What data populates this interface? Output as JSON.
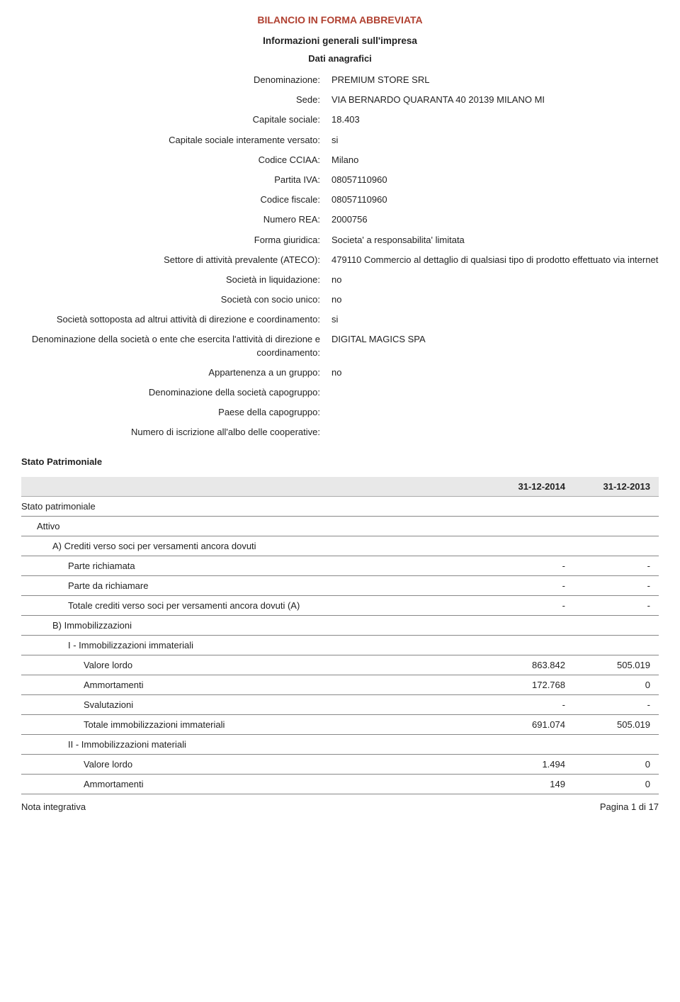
{
  "doc_title": "BILANCIO IN FORMA ABBREVIATA",
  "section_heading": "Informazioni generali sull'impresa",
  "sub_heading": "Dati anagrafici",
  "info_rows": [
    {
      "label": "Denominazione:",
      "value": "PREMIUM STORE SRL"
    },
    {
      "label": "Sede:",
      "value": "VIA BERNARDO QUARANTA 40 20139 MILANO MI"
    },
    {
      "label": "Capitale sociale:",
      "value": "18.403"
    },
    {
      "label": "Capitale sociale interamente versato:",
      "value": "si"
    },
    {
      "label": "Codice CCIAA:",
      "value": "Milano"
    },
    {
      "label": "Partita IVA:",
      "value": "08057110960"
    },
    {
      "label": "Codice fiscale:",
      "value": "08057110960"
    },
    {
      "label": "Numero REA:",
      "value": "2000756"
    },
    {
      "label": "Forma giuridica:",
      "value": "Societa' a responsabilita' limitata"
    },
    {
      "label": "Settore di attività prevalente (ATECO):",
      "value": "479110 Commercio al dettaglio di qualsiasi tipo di prodotto effettuato via internet"
    },
    {
      "label": "Società in liquidazione:",
      "value": "no"
    },
    {
      "label": "Società con socio unico:",
      "value": "no"
    },
    {
      "label": "Società sottoposta ad altrui attività di direzione e coordinamento:",
      "value": "si"
    },
    {
      "label": "Denominazione della società o ente che esercita l'attività di direzione e coordinamento:",
      "value": "DIGITAL MAGICS SPA"
    },
    {
      "label": "Appartenenza a un gruppo:",
      "value": "no"
    },
    {
      "label": "Denominazione della società capogruppo:",
      "value": ""
    },
    {
      "label": "Paese della capogruppo:",
      "value": ""
    },
    {
      "label": "Numero di iscrizione all'albo delle cooperative:",
      "value": ""
    }
  ],
  "section_title": "Stato Patrimoniale",
  "table_header": {
    "col1": "31-12-2014",
    "col2": "31-12-2013"
  },
  "table_rows": [
    {
      "label": "Stato patrimoniale",
      "v1": "",
      "v2": "",
      "indent": 0
    },
    {
      "label": "Attivo",
      "v1": "",
      "v2": "",
      "indent": 1
    },
    {
      "label": "A) Crediti verso soci per versamenti ancora dovuti",
      "v1": "",
      "v2": "",
      "indent": 2
    },
    {
      "label": "Parte richiamata",
      "v1": "-",
      "v2": "-",
      "indent": 3
    },
    {
      "label": "Parte da richiamare",
      "v1": "-",
      "v2": "-",
      "indent": 3
    },
    {
      "label": "Totale crediti verso soci per versamenti ancora dovuti (A)",
      "v1": "-",
      "v2": "-",
      "indent": 3
    },
    {
      "label": "B) Immobilizzazioni",
      "v1": "",
      "v2": "",
      "indent": 2
    },
    {
      "label": "I - Immobilizzazioni immateriali",
      "v1": "",
      "v2": "",
      "indent": 3
    },
    {
      "label": "Valore lordo",
      "v1": "863.842",
      "v2": "505.019",
      "indent": 4
    },
    {
      "label": "Ammortamenti",
      "v1": "172.768",
      "v2": "0",
      "indent": 4
    },
    {
      "label": "Svalutazioni",
      "v1": "-",
      "v2": "-",
      "indent": 4
    },
    {
      "label": "Totale immobilizzazioni immateriali",
      "v1": "691.074",
      "v2": "505.019",
      "indent": 4
    },
    {
      "label": "II - Immobilizzazioni materiali",
      "v1": "",
      "v2": "",
      "indent": 3
    },
    {
      "label": "Valore lordo",
      "v1": "1.494",
      "v2": "0",
      "indent": 4
    },
    {
      "label": "Ammortamenti",
      "v1": "149",
      "v2": "0",
      "indent": 4
    }
  ],
  "footer": {
    "left": "Nota integrativa",
    "right": "Pagina 1 di 17"
  },
  "colors": {
    "title": "#b04030",
    "text": "#222222",
    "header_bg": "#e8e8e8",
    "border": "#888888"
  }
}
